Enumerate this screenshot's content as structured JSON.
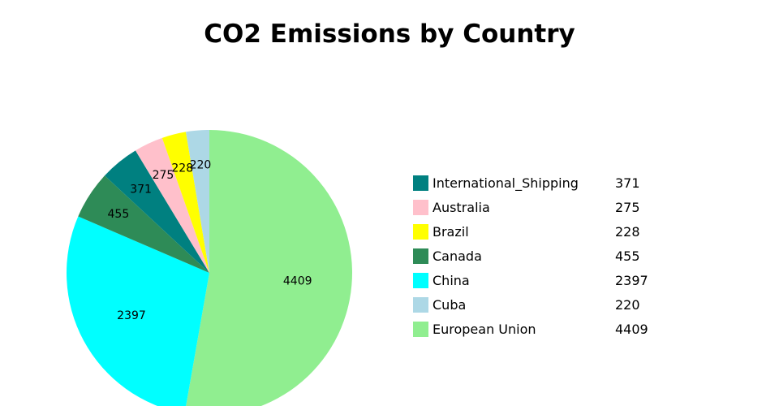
{
  "chart_data": {
    "type": "pie",
    "title": "CO2 Emissions by Country",
    "slices": [
      {
        "label": "European Union",
        "value": 4409,
        "color": "#90ee90"
      },
      {
        "label": "China",
        "value": 2397,
        "color": "#00ffff"
      },
      {
        "label": "Canada",
        "value": 455,
        "color": "#2e8b57"
      },
      {
        "label": "International_Shipping",
        "value": 371,
        "color": "#008080"
      },
      {
        "label": "Australia",
        "value": 275,
        "color": "#ffc0cb"
      },
      {
        "label": "Brazil",
        "value": 228,
        "color": "#ffff00"
      },
      {
        "label": "Cuba",
        "value": 220,
        "color": "#add8e6"
      }
    ],
    "legend_order": [
      "International_Shipping",
      "Australia",
      "Brazil",
      "Canada",
      "China",
      "Cuba",
      "European Union"
    ],
    "legend_placement": "right"
  }
}
